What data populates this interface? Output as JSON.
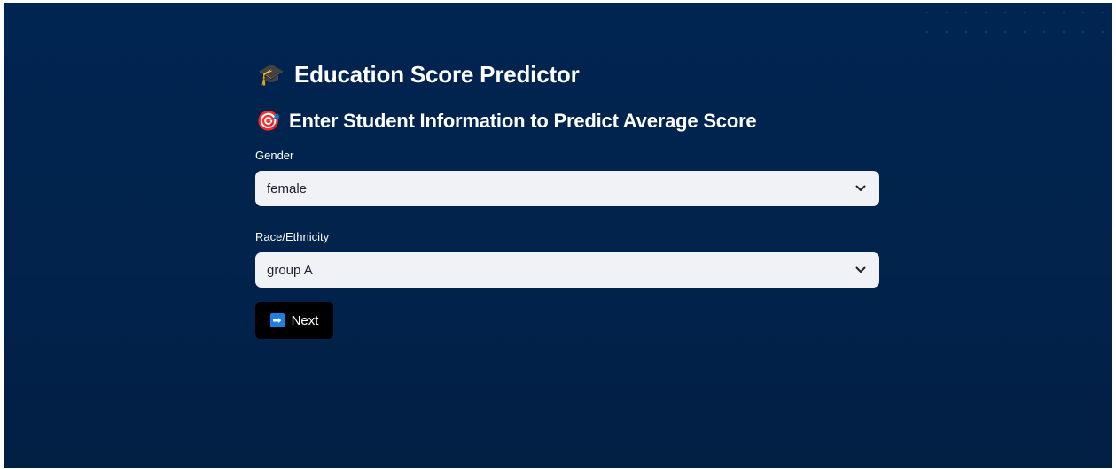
{
  "header": {
    "title_icon": "🎓",
    "title": "Education Score Predictor",
    "subtitle_icon": "🎯",
    "subtitle": "Enter Student Information to Predict Average Score"
  },
  "form": {
    "gender": {
      "label": "Gender",
      "value": "female"
    },
    "race": {
      "label": "Race/Ethnicity",
      "value": "group A"
    },
    "next_button": {
      "icon": "➡",
      "label": "Next"
    }
  },
  "colors": {
    "background": "#002550",
    "select_background": "#f1f2f6",
    "button_background": "#000000",
    "arrow_icon": "#1e7ee6"
  }
}
